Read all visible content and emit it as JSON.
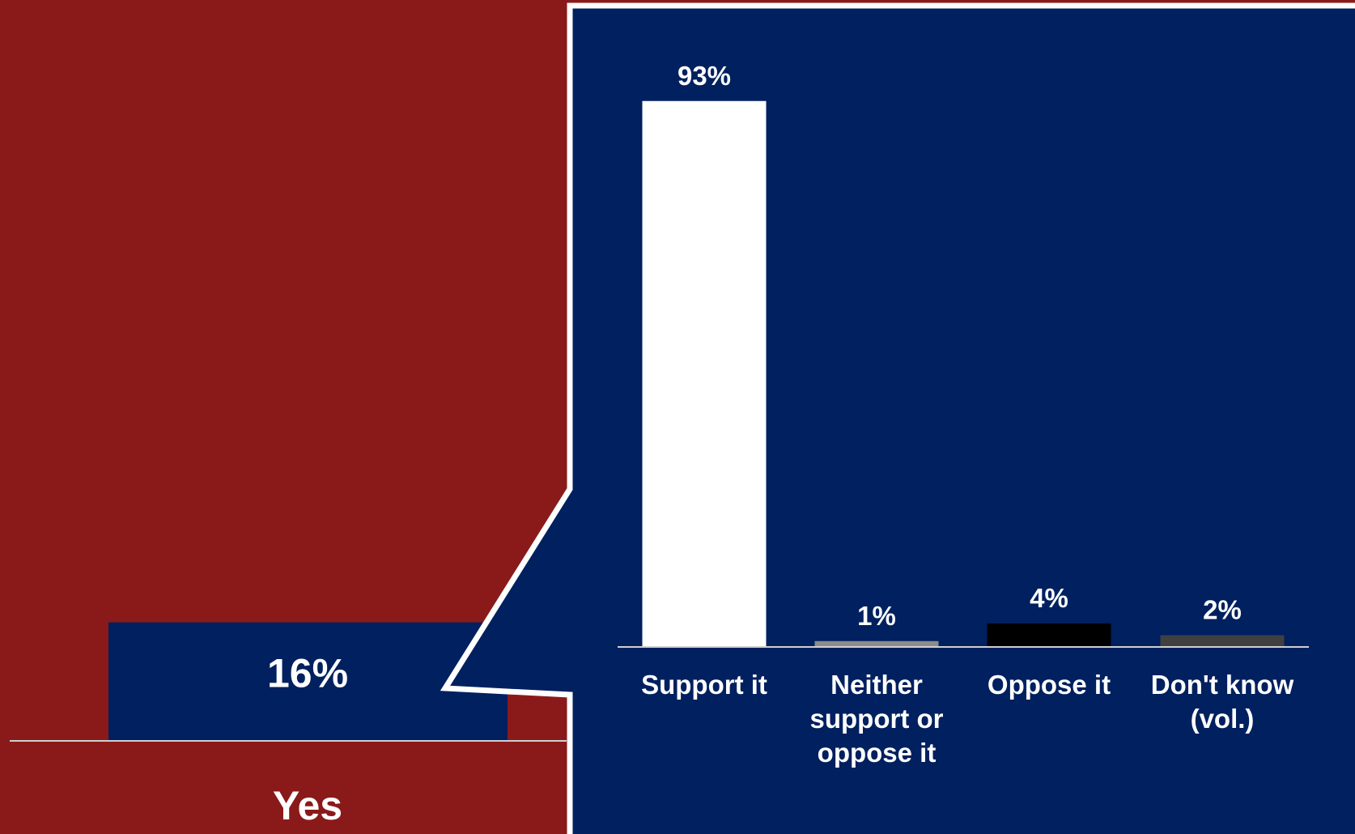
{
  "colors": {
    "background": "#8a1a1a",
    "panel": "#00205f",
    "panel_border": "#ffffff",
    "axis": "#cfcfcf"
  },
  "chart_data": [
    {
      "type": "bar",
      "categories": [
        "Yes"
      ],
      "values": [
        16
      ],
      "value_labels": [
        "16%"
      ],
      "colors": [
        "#00205f"
      ],
      "ylim": [
        0,
        100
      ]
    },
    {
      "type": "bar",
      "categories": [
        "Support it",
        "Neither support or oppose it",
        "Oppose it",
        "Don't know (vol.)"
      ],
      "category_lines": [
        [
          "Support it"
        ],
        [
          "Neither",
          "support or",
          "oppose it"
        ],
        [
          "Oppose it"
        ],
        [
          "Don't know",
          "(vol.)"
        ]
      ],
      "values": [
        93,
        1,
        4,
        2
      ],
      "value_labels": [
        "93%",
        "1%",
        "4%",
        "2%"
      ],
      "colors": [
        "#ffffff",
        "#8c8c8c",
        "#000000",
        "#404040"
      ],
      "ylim": [
        0,
        100
      ]
    }
  ]
}
